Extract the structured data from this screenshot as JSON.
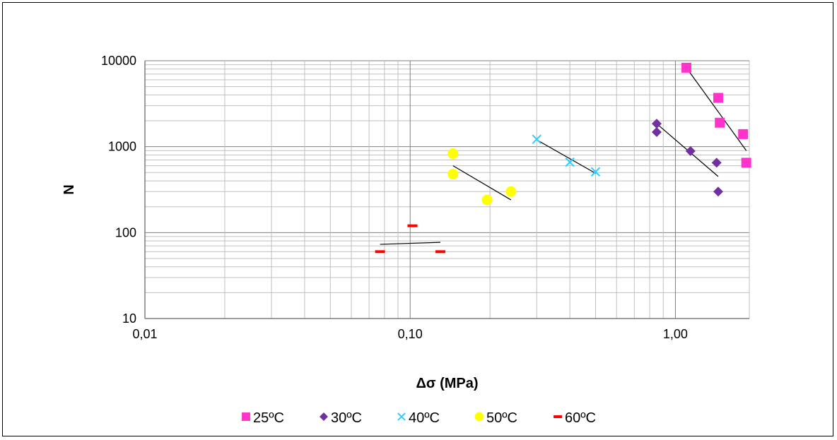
{
  "chart_data": {
    "type": "scatter",
    "title": "",
    "xlabel": "Δσ (MPa)",
    "ylabel": "N",
    "x_scale": "log",
    "y_scale": "log",
    "xlim": [
      0.01,
      1.9
    ],
    "ylim": [
      10,
      10000
    ],
    "x_ticks": [
      {
        "value": 0.01,
        "label": "0,01"
      },
      {
        "value": 0.1,
        "label": "0,10"
      },
      {
        "value": 1,
        "label": "1,00"
      }
    ],
    "y_ticks": [
      {
        "value": 10,
        "label": "10"
      },
      {
        "value": 100,
        "label": "100"
      },
      {
        "value": 1000,
        "label": "1000"
      },
      {
        "value": 10000,
        "label": "10000"
      }
    ],
    "grid": true,
    "legend_position": "bottom",
    "series": [
      {
        "name": "25ºC",
        "marker": "square",
        "color": "#FF33CC",
        "points": [
          [
            1.1,
            8300
          ],
          [
            1.45,
            3700
          ],
          [
            1.47,
            1900
          ],
          [
            1.8,
            1400
          ],
          [
            1.85,
            650
          ]
        ],
        "trendline": [
          [
            1.1,
            8300
          ],
          [
            1.85,
            900
          ]
        ]
      },
      {
        "name": "30ºC",
        "marker": "diamond",
        "color": "#7030A0",
        "points": [
          [
            0.85,
            1850
          ],
          [
            0.85,
            1480
          ],
          [
            1.14,
            890
          ],
          [
            1.43,
            650
          ],
          [
            1.45,
            300
          ]
        ],
        "trendline": [
          [
            0.85,
            1850
          ],
          [
            1.45,
            450
          ]
        ]
      },
      {
        "name": "40ºC",
        "marker": "x",
        "color": "#33CCFF",
        "points": [
          [
            0.3,
            1220
          ],
          [
            0.4,
            660
          ],
          [
            0.5,
            510
          ]
        ],
        "trendline": [
          [
            0.3,
            1200
          ],
          [
            0.5,
            490
          ]
        ]
      },
      {
        "name": "50ºC",
        "marker": "circle",
        "color": "#FFFF00",
        "points": [
          [
            0.145,
            830
          ],
          [
            0.145,
            480
          ],
          [
            0.195,
            240
          ],
          [
            0.24,
            300
          ]
        ],
        "trendline": [
          [
            0.145,
            600
          ],
          [
            0.24,
            240
          ]
        ]
      },
      {
        "name": "60ºC",
        "marker": "dash",
        "color": "#FF0000",
        "points": [
          [
            0.077,
            60
          ],
          [
            0.102,
            120
          ],
          [
            0.13,
            60
          ]
        ],
        "trendline": [
          [
            0.077,
            73
          ],
          [
            0.13,
            77
          ]
        ]
      }
    ]
  }
}
